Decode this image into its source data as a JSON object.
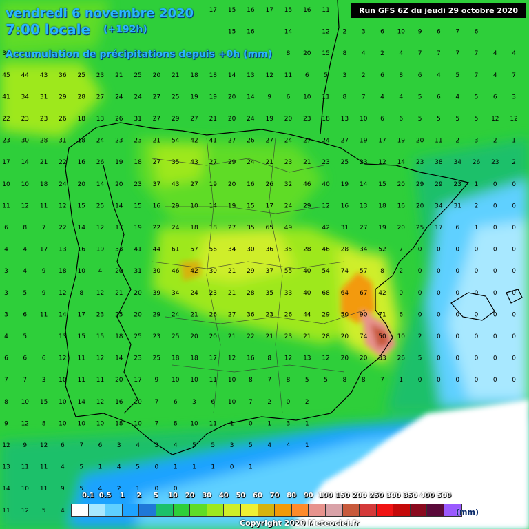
{
  "header": {
    "date": "vendredi 6 novembre 2020",
    "time": "7:00 locale",
    "lead": "(+192h)",
    "variable": "Accumulation de précipitations depuis +0h (mm)"
  },
  "run_info": "Run GFS 6Z du jeudi 29 octobre 2020",
  "copyright": "Copyright 2020 Meteociel.fr",
  "legend": {
    "unit": "(mm)",
    "thresholds": [
      "0.1",
      "0.5",
      "1",
      "2",
      "5",
      "10",
      "20",
      "30",
      "40",
      "50",
      "60",
      "70",
      "80",
      "90",
      "100",
      "150",
      "200",
      "250",
      "300",
      "350",
      "400",
      "500"
    ],
    "colors": [
      "#ffffff",
      "#a8e8ff",
      "#5fd0ff",
      "#1ea3ff",
      "#1f78d8",
      "#1cc06a",
      "#2ecf3a",
      "#5fdc26",
      "#9ee81e",
      "#cfee2a",
      "#eef033",
      "#d6b30e",
      "#f39a08",
      "#ff8a2a",
      "#e7938d",
      "#d9a2a8",
      "#c85a3c",
      "#d43a3a",
      "#f01414",
      "#c40a0a",
      "#8a0a1e",
      "#5a0a3a",
      "#9b5aff"
    ]
  },
  "grid_values": [
    [
      null,
      null,
      null,
      null,
      null,
      null,
      null,
      null,
      null,
      null,
      null,
      17,
      15,
      16,
      17,
      15,
      16,
      11,
      null,
      null,
      null,
      null,
      null,
      null,
      null
    ],
    [
      null,
      null,
      null,
      null,
      null,
      null,
      null,
      null,
      null,
      null,
      null,
      null,
      15,
      16,
      null,
      14,
      null,
      12,
      2,
      3,
      6,
      10,
      9,
      6,
      7,
      6
    ],
    [
      36,
      null,
      null,
      null,
      null,
      null,
      null,
      null,
      null,
      null,
      null,
      null,
      null,
      null,
      null,
      8,
      20,
      15,
      8,
      4,
      2,
      4,
      7,
      7,
      7,
      7,
      4,
      4
    ],
    [
      45,
      44,
      43,
      36,
      25,
      23,
      21,
      25,
      20,
      21,
      18,
      18,
      14,
      13,
      12,
      11,
      6,
      5,
      3,
      2,
      6,
      8,
      6,
      4,
      5,
      7,
      4,
      7
    ],
    [
      41,
      34,
      31,
      29,
      28,
      27,
      24,
      24,
      27,
      25,
      19,
      19,
      20,
      14,
      9,
      6,
      10,
      11,
      8,
      7,
      4,
      4,
      5,
      6,
      4,
      5,
      6,
      3
    ],
    [
      22,
      23,
      23,
      26,
      18,
      13,
      26,
      31,
      27,
      29,
      27,
      21,
      20,
      24,
      19,
      20,
      23,
      18,
      13,
      10,
      6,
      6,
      5,
      5,
      5,
      5,
      12,
      12
    ],
    [
      23,
      30,
      28,
      31,
      18,
      24,
      23,
      23,
      21,
      54,
      42,
      41,
      27,
      26,
      27,
      24,
      27,
      24,
      27,
      19,
      17,
      19,
      20,
      11,
      2,
      3,
      2,
      1
    ],
    [
      17,
      14,
      21,
      22,
      16,
      26,
      19,
      18,
      27,
      35,
      43,
      27,
      29,
      24,
      21,
      23,
      21,
      23,
      25,
      23,
      12,
      14,
      23,
      38,
      34,
      26,
      23,
      2
    ],
    [
      10,
      10,
      18,
      24,
      20,
      14,
      20,
      23,
      37,
      43,
      27,
      19,
      20,
      16,
      26,
      32,
      46,
      40,
      19,
      14,
      15,
      20,
      29,
      29,
      23,
      1,
      0,
      0
    ],
    [
      11,
      12,
      11,
      12,
      15,
      25,
      14,
      15,
      16,
      29,
      10,
      14,
      19,
      15,
      17,
      24,
      29,
      12,
      16,
      13,
      18,
      16,
      20,
      34,
      31,
      2,
      0,
      0
    ],
    [
      6,
      8,
      7,
      22,
      14,
      12,
      17,
      19,
      22,
      24,
      18,
      18,
      27,
      35,
      65,
      49,
      null,
      42,
      31,
      27,
      19,
      20,
      25,
      17,
      6,
      1,
      0,
      0
    ],
    [
      4,
      4,
      17,
      13,
      16,
      19,
      33,
      41,
      44,
      61,
      57,
      56,
      34,
      30,
      36,
      35,
      28,
      46,
      28,
      34,
      52,
      7,
      0,
      0,
      0,
      0,
      0,
      0
    ],
    [
      3,
      4,
      9,
      18,
      10,
      4,
      20,
      31,
      30,
      46,
      42,
      30,
      21,
      29,
      37,
      55,
      40,
      54,
      74,
      57,
      8,
      2,
      0,
      0,
      0,
      0,
      0,
      0
    ],
    [
      3,
      5,
      9,
      12,
      8,
      12,
      21,
      20,
      39,
      34,
      24,
      23,
      21,
      28,
      35,
      33,
      40,
      68,
      64,
      67,
      42,
      0,
      0,
      0,
      0,
      0,
      0,
      0
    ],
    [
      3,
      6,
      11,
      14,
      17,
      23,
      25,
      20,
      29,
      24,
      21,
      26,
      27,
      36,
      23,
      26,
      44,
      29,
      50,
      90,
      71,
      6,
      0,
      0,
      0,
      0,
      0,
      0
    ],
    [
      4,
      5,
      null,
      13,
      15,
      15,
      18,
      25,
      23,
      25,
      20,
      20,
      21,
      22,
      21,
      23,
      21,
      28,
      20,
      74,
      50,
      10,
      2,
      0,
      0,
      0,
      0,
      0
    ],
    [
      6,
      6,
      6,
      12,
      11,
      12,
      14,
      23,
      25,
      18,
      18,
      17,
      12,
      16,
      8,
      12,
      13,
      12,
      20,
      20,
      33,
      26,
      5,
      0,
      0,
      0,
      0,
      0
    ],
    [
      7,
      7,
      3,
      10,
      11,
      11,
      20,
      17,
      9,
      10,
      10,
      11,
      10,
      8,
      7,
      8,
      5,
      5,
      8,
      8,
      7,
      1,
      0,
      0,
      0,
      0,
      0,
      0
    ],
    [
      8,
      10,
      15,
      10,
      14,
      12,
      16,
      10,
      7,
      6,
      3,
      6,
      10,
      7,
      2,
      0,
      2,
      null,
      null,
      null,
      null,
      null,
      null,
      null,
      null,
      null,
      null,
      null
    ],
    [
      9,
      12,
      8,
      10,
      10,
      10,
      18,
      10,
      7,
      8,
      10,
      11,
      1,
      0,
      1,
      3,
      1,
      null,
      null,
      null,
      null,
      null,
      null,
      null,
      null,
      null,
      null,
      null
    ],
    [
      12,
      9,
      12,
      6,
      7,
      6,
      3,
      4,
      3,
      4,
      5,
      5,
      3,
      5,
      4,
      4,
      1,
      null,
      null,
      null,
      null,
      null,
      null,
      null,
      null,
      null,
      null,
      null
    ],
    [
      13,
      11,
      11,
      4,
      5,
      1,
      4,
      5,
      0,
      1,
      1,
      1,
      0,
      1,
      null,
      null,
      null,
      null,
      null,
      null,
      null,
      null,
      null,
      null,
      null,
      null,
      null,
      null
    ],
    [
      14,
      10,
      11,
      9,
      5,
      4,
      2,
      1,
      0,
      0,
      null,
      null,
      null,
      null,
      null,
      null,
      null,
      null,
      null,
      null,
      null,
      null,
      null,
      null,
      null,
      null,
      null,
      null
    ],
    [
      11,
      12,
      5,
      4,
      3,
      2,
      2,
      1,
      3,
      0,
      null,
      null,
      null,
      null,
      null,
      null,
      null,
      null,
      null,
      null,
      null,
      null,
      null,
      null,
      null,
      null,
      null,
      null
    ]
  ]
}
